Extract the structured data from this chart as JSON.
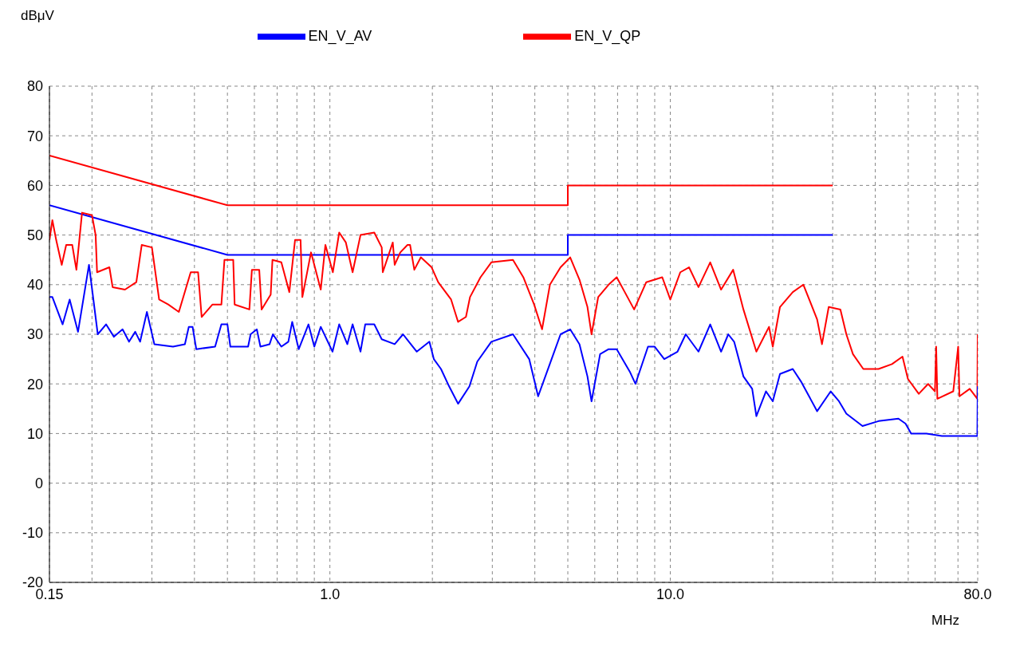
{
  "chart_data": {
    "type": "line",
    "xlabel": "MHz",
    "ylabel": "dBμV",
    "log": "x",
    "grid": true,
    "legend": "top",
    "marker": "none",
    "xlim": [
      0.15,
      80
    ],
    "ylim": [
      -20,
      80
    ],
    "xticks": [
      {
        "value": 0.15,
        "label": "0.15"
      },
      {
        "value": 0.2,
        "label": null
      },
      {
        "value": 0.3,
        "label": null
      },
      {
        "value": 0.4,
        "label": null
      },
      {
        "value": 0.5,
        "label": null
      },
      {
        "value": 0.6,
        "label": null
      },
      {
        "value": 0.7,
        "label": null
      },
      {
        "value": 0.8,
        "label": null
      },
      {
        "value": 0.9,
        "label": null
      },
      {
        "value": 1,
        "label": "1.0"
      },
      {
        "value": 2,
        "label": null
      },
      {
        "value": 3,
        "label": null
      },
      {
        "value": 4,
        "label": null
      },
      {
        "value": 5,
        "label": null
      },
      {
        "value": 6,
        "label": null
      },
      {
        "value": 7,
        "label": null
      },
      {
        "value": 8,
        "label": null
      },
      {
        "value": 9,
        "label": null
      },
      {
        "value": 10,
        "label": "10.0"
      },
      {
        "value": 20,
        "label": null
      },
      {
        "value": 30,
        "label": null
      },
      {
        "value": 40,
        "label": null
      },
      {
        "value": 50,
        "label": null
      },
      {
        "value": 60,
        "label": null
      },
      {
        "value": 70,
        "label": null
      },
      {
        "value": 80,
        "label": "80.0"
      }
    ],
    "yticks": [
      -20,
      -10,
      0,
      10,
      20,
      30,
      40,
      50,
      60,
      70,
      80
    ],
    "series": [
      {
        "name": "EN_V_QP",
        "color": "#ff0000",
        "x": [
          0.15,
          0.5,
          5,
          5,
          30
        ],
        "values": [
          66,
          56,
          56,
          60,
          60
        ]
      },
      {
        "name": "EN_V_AV",
        "color": "#0000ff",
        "x": [
          0.15,
          0.5,
          5,
          5,
          30
        ],
        "values": [
          56,
          46,
          46,
          50,
          50
        ]
      },
      {
        "color": "#ff0000",
        "x": [
          0.15,
          0.153,
          0.157,
          0.163,
          0.168,
          0.175,
          0.18,
          0.187,
          0.2,
          0.205,
          0.207,
          0.225,
          0.23,
          0.25,
          0.27,
          0.28,
          0.3,
          0.315,
          0.335,
          0.36,
          0.39,
          0.41,
          0.42,
          0.452,
          0.48,
          0.49,
          0.52,
          0.525,
          0.58,
          0.59,
          0.62,
          0.63,
          0.67,
          0.678,
          0.72,
          0.76,
          0.79,
          0.82,
          0.83,
          0.88,
          0.94,
          0.97,
          1.02,
          1.065,
          1.114,
          1.166,
          1.23,
          1.35,
          1.42,
          1.43,
          1.53,
          1.55,
          1.61,
          1.69,
          1.72,
          1.77,
          1.85,
          1.99,
          2.08,
          2.27,
          2.38,
          2.51,
          2.58,
          2.77,
          2.98,
          3.45,
          3.7,
          3.98,
          4.2,
          4.43,
          4.76,
          5.08,
          5.41,
          5.71,
          5.87,
          6.14,
          6.59,
          6.96,
          7.35,
          7.83,
          8.5,
          9.47,
          10,
          10.7,
          11.35,
          12.1,
          13.1,
          14.1,
          15.3,
          16.4,
          17.9,
          19.5,
          20,
          21,
          22.9,
          24.6,
          27,
          27.9,
          29.2,
          31.6,
          32.9,
          34.4,
          36.9,
          40.9,
          44.8,
          48.1,
          49.9,
          53.7,
          57.2,
          59.9,
          60.4,
          60.9,
          67.8,
          70.1,
          70.7,
          75.8,
          79.8,
          80
        ],
        "values": [
          49,
          53,
          49,
          44,
          48,
          48,
          43,
          54.5,
          54,
          50,
          42.5,
          43.5,
          39.5,
          39,
          40.5,
          48,
          47.5,
          37,
          36,
          34.5,
          42.5,
          42.5,
          33.5,
          36,
          36,
          45,
          45,
          36,
          35,
          43,
          43,
          35,
          38,
          45,
          44.5,
          38.5,
          49,
          49,
          37.5,
          46.5,
          39,
          48,
          42.5,
          50.5,
          48.5,
          42.5,
          50,
          50.5,
          47.5,
          42.5,
          48.5,
          44,
          46.5,
          48,
          48,
          43,
          45.5,
          43.5,
          40.5,
          37,
          32.5,
          33.5,
          37.5,
          41.5,
          44.5,
          45,
          41.5,
          36,
          31,
          40,
          43.5,
          45.5,
          41,
          35.5,
          30,
          37.5,
          40,
          41.5,
          38.5,
          35,
          40.5,
          41.5,
          37,
          42.5,
          43.5,
          39.5,
          44.5,
          39,
          43,
          35,
          26.5,
          31.5,
          27.5,
          35.5,
          38.5,
          40,
          33,
          28,
          35.5,
          35,
          30,
          26,
          23,
          23,
          24,
          25.5,
          21,
          18,
          20,
          18.5,
          27.5,
          17,
          18.5,
          27.5,
          17.5,
          19,
          17,
          30
        ]
      },
      {
        "color": "#0000ff",
        "x": [
          0.15,
          0.153,
          0.164,
          0.172,
          0.182,
          0.196,
          0.208,
          0.22,
          0.232,
          0.246,
          0.257,
          0.268,
          0.277,
          0.29,
          0.305,
          0.346,
          0.375,
          0.385,
          0.395,
          0.405,
          0.46,
          0.48,
          0.5,
          0.51,
          0.575,
          0.585,
          0.61,
          0.625,
          0.665,
          0.68,
          0.72,
          0.755,
          0.775,
          0.81,
          0.865,
          0.9,
          0.94,
          1.018,
          1.065,
          1.125,
          1.166,
          1.23,
          1.27,
          1.35,
          1.42,
          1.55,
          1.64,
          1.8,
          1.96,
          2.02,
          2.12,
          2.24,
          2.38,
          2.57,
          2.71,
          2.98,
          3.45,
          3.85,
          4.09,
          4.48,
          4.76,
          5.08,
          5.41,
          5.71,
          5.87,
          6.22,
          6.59,
          6.96,
          7.6,
          7.9,
          8.6,
          9,
          9.6,
          10.5,
          11.1,
          12.1,
          13.1,
          14.1,
          14.8,
          15.4,
          16.4,
          17.4,
          17.9,
          19.1,
          20,
          21,
          22.9,
          24.2,
          27,
          29.6,
          31.3,
          32.9,
          36.7,
          40.9,
          46.8,
          49.1,
          51,
          56.6,
          62.8,
          79.8,
          80
        ],
        "values": [
          37.5,
          37.5,
          32,
          37,
          30.5,
          44,
          30,
          32,
          29.5,
          31,
          28.5,
          30.5,
          28.5,
          34.5,
          28,
          27.5,
          28,
          31.5,
          31.5,
          27,
          27.5,
          32,
          32,
          27.5,
          27.5,
          30,
          31,
          27.5,
          28,
          30,
          27.5,
          28.5,
          32.5,
          27,
          32,
          27.5,
          31.5,
          26.5,
          32,
          28,
          32,
          26.5,
          32,
          32,
          29,
          28,
          30,
          26.5,
          28.5,
          25,
          23,
          19.5,
          16,
          19.5,
          24.5,
          28.5,
          30,
          25,
          17.5,
          25,
          30,
          31,
          28,
          21.5,
          16.5,
          26,
          27,
          27,
          22.5,
          20,
          27.5,
          27.5,
          25,
          26.5,
          30,
          26.5,
          32,
          26.5,
          30,
          28.5,
          21.5,
          19,
          13.5,
          18.5,
          16.5,
          22,
          23,
          20.5,
          14.5,
          18.5,
          16.5,
          14,
          11.5,
          12.5,
          13,
          12,
          10,
          10,
          9.5,
          9.5,
          19.5
        ]
      }
    ]
  }
}
